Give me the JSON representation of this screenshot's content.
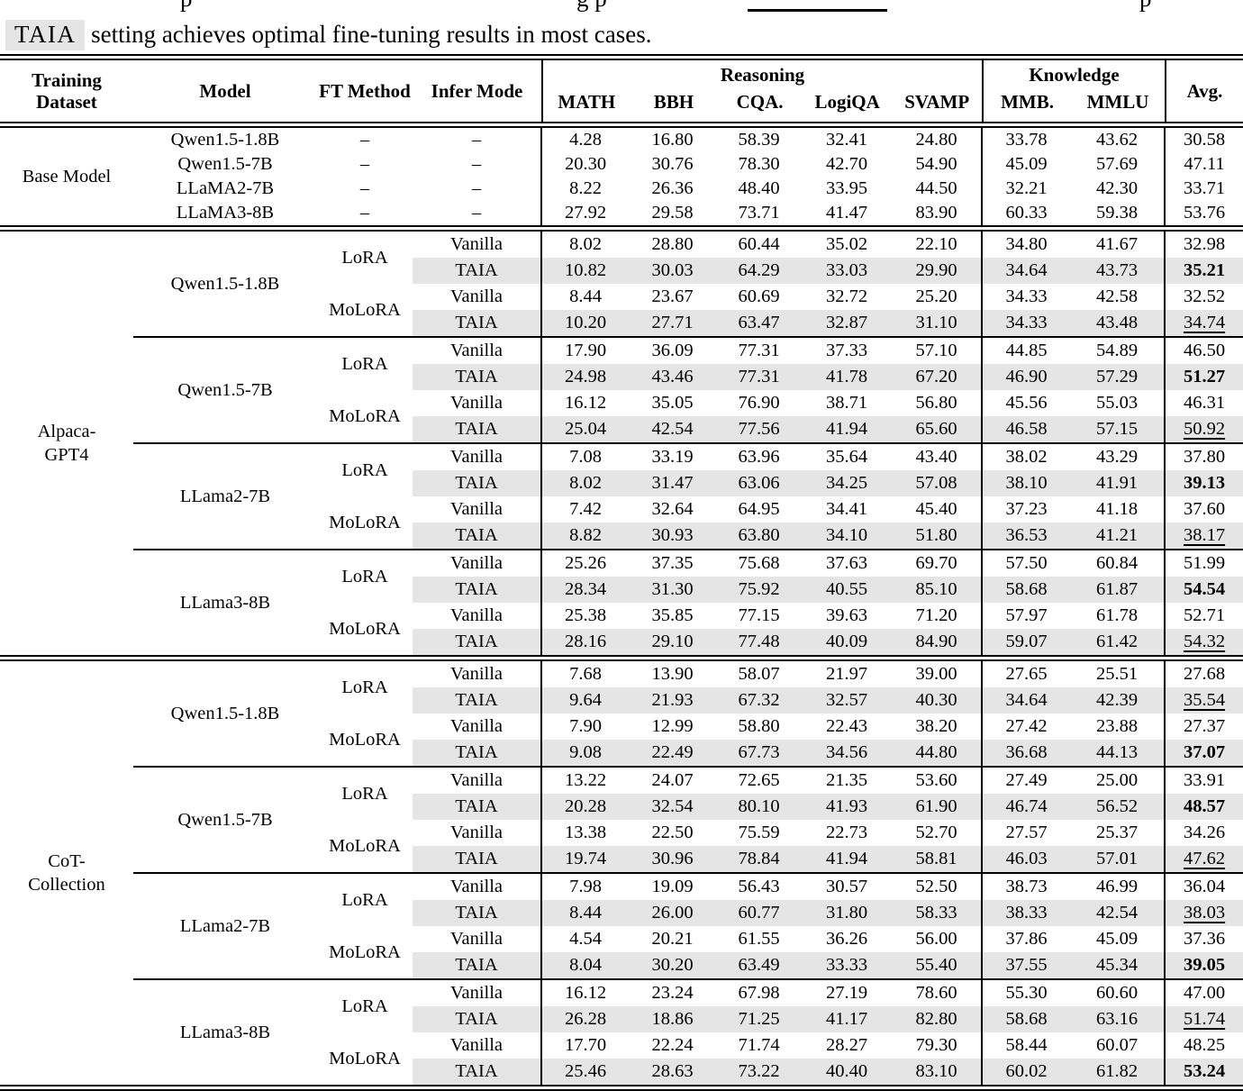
{
  "caption": {
    "fragment_1": "p",
    "fragment_2": "g p",
    "fragment_3": "p",
    "highlight": "TAIA",
    "text": "setting achieves optimal fine-tuning results in most cases."
  },
  "header": {
    "training_line1": "Training",
    "training_line2": "Dataset",
    "model": "Model",
    "ft_method": "FT Method",
    "infer_mode": "Infer Mode",
    "reasoning": "Reasoning",
    "knowledge": "Knowledge",
    "reasoning_cols": [
      "MATH",
      "BBH",
      "CQA.",
      "LogiQA",
      "SVAMP"
    ],
    "knowledge_cols": [
      "MMB.",
      "MMLU"
    ],
    "avg": "Avg."
  },
  "colors": {
    "row_shade": "#e5e5e5",
    "rule": "#000000",
    "caption_highlight_bg": "#e5e5e5"
  },
  "sections": [
    {
      "id": "base",
      "type": "flat",
      "dataset_lines": [
        "Base Model"
      ],
      "rows": [
        {
          "model": "Qwen1.5-1.8B",
          "ft": "–",
          "infer": "–",
          "shaded": false,
          "scores": [
            "4.28",
            "16.80",
            "58.39",
            "32.41",
            "24.80",
            "33.78",
            "43.62"
          ],
          "avg": "30.58",
          "avg_style": ""
        },
        {
          "model": "Qwen1.5-7B",
          "ft": "–",
          "infer": "–",
          "shaded": false,
          "scores": [
            "20.30",
            "30.76",
            "78.30",
            "42.70",
            "54.90",
            "45.09",
            "57.69"
          ],
          "avg": "47.11",
          "avg_style": ""
        },
        {
          "model": "LLaMA2-7B",
          "ft": "–",
          "infer": "–",
          "shaded": false,
          "scores": [
            "8.22",
            "26.36",
            "48.40",
            "33.95",
            "44.50",
            "32.21",
            "42.30"
          ],
          "avg": "33.71",
          "avg_style": ""
        },
        {
          "model": "LLaMA3-8B",
          "ft": "–",
          "infer": "–",
          "shaded": false,
          "scores": [
            "27.92",
            "29.58",
            "73.71",
            "41.47",
            "83.90",
            "60.33",
            "59.38"
          ],
          "avg": "53.76",
          "avg_style": ""
        }
      ]
    },
    {
      "id": "alpaca",
      "type": "blocks",
      "dataset_lines": [
        "Alpaca-",
        "GPT4"
      ],
      "blocks": [
        {
          "model": "Qwen1.5-1.8B",
          "groups": [
            {
              "ft": "LoRA",
              "rows": [
                {
                  "infer": "Vanilla",
                  "shaded": false,
                  "scores": [
                    "8.02",
                    "28.80",
                    "60.44",
                    "35.02",
                    "22.10",
                    "34.80",
                    "41.67"
                  ],
                  "avg": "32.98",
                  "avg_style": ""
                },
                {
                  "infer": "TAIA",
                  "shaded": true,
                  "scores": [
                    "10.82",
                    "30.03",
                    "64.29",
                    "33.03",
                    "29.90",
                    "34.64",
                    "43.73"
                  ],
                  "avg": "35.21",
                  "avg_style": "bold"
                }
              ]
            },
            {
              "ft": "MoLoRA",
              "rows": [
                {
                  "infer": "Vanilla",
                  "shaded": false,
                  "scores": [
                    "8.44",
                    "23.67",
                    "60.69",
                    "32.72",
                    "25.20",
                    "34.33",
                    "42.58"
                  ],
                  "avg": "32.52",
                  "avg_style": ""
                },
                {
                  "infer": "TAIA",
                  "shaded": true,
                  "scores": [
                    "10.20",
                    "27.71",
                    "63.47",
                    "32.87",
                    "31.10",
                    "34.33",
                    "43.48"
                  ],
                  "avg": "34.74",
                  "avg_style": "underline"
                }
              ]
            }
          ]
        },
        {
          "model": "Qwen1.5-7B",
          "groups": [
            {
              "ft": "LoRA",
              "rows": [
                {
                  "infer": "Vanilla",
                  "shaded": false,
                  "scores": [
                    "17.90",
                    "36.09",
                    "77.31",
                    "37.33",
                    "57.10",
                    "44.85",
                    "54.89"
                  ],
                  "avg": "46.50",
                  "avg_style": ""
                },
                {
                  "infer": "TAIA",
                  "shaded": true,
                  "scores": [
                    "24.98",
                    "43.46",
                    "77.31",
                    "41.78",
                    "67.20",
                    "46.90",
                    "57.29"
                  ],
                  "avg": "51.27",
                  "avg_style": "bold"
                }
              ]
            },
            {
              "ft": "MoLoRA",
              "rows": [
                {
                  "infer": "Vanilla",
                  "shaded": false,
                  "scores": [
                    "16.12",
                    "35.05",
                    "76.90",
                    "38.71",
                    "56.80",
                    "45.56",
                    "55.03"
                  ],
                  "avg": "46.31",
                  "avg_style": ""
                },
                {
                  "infer": "TAIA",
                  "shaded": true,
                  "scores": [
                    "25.04",
                    "42.54",
                    "77.56",
                    "41.94",
                    "65.60",
                    "46.58",
                    "57.15"
                  ],
                  "avg": "50.92",
                  "avg_style": "underline"
                }
              ]
            }
          ]
        },
        {
          "model": "LLama2-7B",
          "groups": [
            {
              "ft": "LoRA",
              "rows": [
                {
                  "infer": "Vanilla",
                  "shaded": false,
                  "scores": [
                    "7.08",
                    "33.19",
                    "63.96",
                    "35.64",
                    "43.40",
                    "38.02",
                    "43.29"
                  ],
                  "avg": "37.80",
                  "avg_style": ""
                },
                {
                  "infer": "TAIA",
                  "shaded": true,
                  "scores": [
                    "8.02",
                    "31.47",
                    "63.06",
                    "34.25",
                    "57.08",
                    "38.10",
                    "41.91"
                  ],
                  "avg": "39.13",
                  "avg_style": "bold"
                }
              ]
            },
            {
              "ft": "MoLoRA",
              "rows": [
                {
                  "infer": "Vanilla",
                  "shaded": false,
                  "scores": [
                    "7.42",
                    "32.64",
                    "64.95",
                    "34.41",
                    "45.40",
                    "37.23",
                    "41.18"
                  ],
                  "avg": "37.60",
                  "avg_style": ""
                },
                {
                  "infer": "TAIA",
                  "shaded": true,
                  "scores": [
                    "8.82",
                    "30.93",
                    "63.80",
                    "34.10",
                    "51.80",
                    "36.53",
                    "41.21"
                  ],
                  "avg": "38.17",
                  "avg_style": "underline"
                }
              ]
            }
          ]
        },
        {
          "model": "LLama3-8B",
          "groups": [
            {
              "ft": "LoRA",
              "rows": [
                {
                  "infer": "Vanilla",
                  "shaded": false,
                  "scores": [
                    "25.26",
                    "37.35",
                    "75.68",
                    "37.63",
                    "69.70",
                    "57.50",
                    "60.84"
                  ],
                  "avg": "51.99",
                  "avg_style": ""
                },
                {
                  "infer": "TAIA",
                  "shaded": true,
                  "scores": [
                    "28.34",
                    "31.30",
                    "75.92",
                    "40.55",
                    "85.10",
                    "58.68",
                    "61.87"
                  ],
                  "avg": "54.54",
                  "avg_style": "bold"
                }
              ]
            },
            {
              "ft": "MoLoRA",
              "rows": [
                {
                  "infer": "Vanilla",
                  "shaded": false,
                  "scores": [
                    "25.38",
                    "35.85",
                    "77.15",
                    "39.63",
                    "71.20",
                    "57.97",
                    "61.78"
                  ],
                  "avg": "52.71",
                  "avg_style": ""
                },
                {
                  "infer": "TAIA",
                  "shaded": true,
                  "scores": [
                    "28.16",
                    "29.10",
                    "77.48",
                    "40.09",
                    "84.90",
                    "59.07",
                    "61.42"
                  ],
                  "avg": "54.32",
                  "avg_style": "underline"
                }
              ]
            }
          ]
        }
      ]
    },
    {
      "id": "cot",
      "type": "blocks",
      "dataset_lines": [
        "CoT-",
        "Collection"
      ],
      "blocks": [
        {
          "model": "Qwen1.5-1.8B",
          "groups": [
            {
              "ft": "LoRA",
              "rows": [
                {
                  "infer": "Vanilla",
                  "shaded": false,
                  "scores": [
                    "7.68",
                    "13.90",
                    "58.07",
                    "21.97",
                    "39.00",
                    "27.65",
                    "25.51"
                  ],
                  "avg": "27.68",
                  "avg_style": ""
                },
                {
                  "infer": "TAIA",
                  "shaded": true,
                  "scores": [
                    "9.64",
                    "21.93",
                    "67.32",
                    "32.57",
                    "40.30",
                    "34.64",
                    "42.39"
                  ],
                  "avg": "35.54",
                  "avg_style": "underline"
                }
              ]
            },
            {
              "ft": "MoLoRA",
              "rows": [
                {
                  "infer": "Vanilla",
                  "shaded": false,
                  "scores": [
                    "7.90",
                    "12.99",
                    "58.80",
                    "22.43",
                    "38.20",
                    "27.42",
                    "23.88"
                  ],
                  "avg": "27.37",
                  "avg_style": ""
                },
                {
                  "infer": "TAIA",
                  "shaded": true,
                  "scores": [
                    "9.08",
                    "22.49",
                    "67.73",
                    "34.56",
                    "44.80",
                    "36.68",
                    "44.13"
                  ],
                  "avg": "37.07",
                  "avg_style": "bold"
                }
              ]
            }
          ]
        },
        {
          "model": "Qwen1.5-7B",
          "groups": [
            {
              "ft": "LoRA",
              "rows": [
                {
                  "infer": "Vanilla",
                  "shaded": false,
                  "scores": [
                    "13.22",
                    "24.07",
                    "72.65",
                    "21.35",
                    "53.60",
                    "27.49",
                    "25.00"
                  ],
                  "avg": "33.91",
                  "avg_style": ""
                },
                {
                  "infer": "TAIA",
                  "shaded": true,
                  "scores": [
                    "20.28",
                    "32.54",
                    "80.10",
                    "41.93",
                    "61.90",
                    "46.74",
                    "56.52"
                  ],
                  "avg": "48.57",
                  "avg_style": "bold"
                }
              ]
            },
            {
              "ft": "MoLoRA",
              "rows": [
                {
                  "infer": "Vanilla",
                  "shaded": false,
                  "scores": [
                    "13.38",
                    "22.50",
                    "75.59",
                    "22.73",
                    "52.70",
                    "27.57",
                    "25.37"
                  ],
                  "avg": "34.26",
                  "avg_style": ""
                },
                {
                  "infer": "TAIA",
                  "shaded": true,
                  "scores": [
                    "19.74",
                    "30.96",
                    "78.84",
                    "41.94",
                    "58.81",
                    "46.03",
                    "57.01"
                  ],
                  "avg": "47.62",
                  "avg_style": "underline"
                }
              ]
            }
          ]
        },
        {
          "model": "LLama2-7B",
          "groups": [
            {
              "ft": "LoRA",
              "rows": [
                {
                  "infer": "Vanilla",
                  "shaded": false,
                  "scores": [
                    "7.98",
                    "19.09",
                    "56.43",
                    "30.57",
                    "52.50",
                    "38.73",
                    "46.99"
                  ],
                  "avg": "36.04",
                  "avg_style": ""
                },
                {
                  "infer": "TAIA",
                  "shaded": true,
                  "scores": [
                    "8.44",
                    "26.00",
                    "60.77",
                    "31.80",
                    "58.33",
                    "38.33",
                    "42.54"
                  ],
                  "avg": "38.03",
                  "avg_style": "underline"
                }
              ]
            },
            {
              "ft": "MoLoRA",
              "rows": [
                {
                  "infer": "Vanilla",
                  "shaded": false,
                  "scores": [
                    "4.54",
                    "20.21",
                    "61.55",
                    "36.26",
                    "56.00",
                    "37.86",
                    "45.09"
                  ],
                  "avg": "37.36",
                  "avg_style": ""
                },
                {
                  "infer": "TAIA",
                  "shaded": true,
                  "scores": [
                    "8.04",
                    "30.20",
                    "63.49",
                    "33.33",
                    "55.40",
                    "37.55",
                    "45.34"
                  ],
                  "avg": "39.05",
                  "avg_style": "bold"
                }
              ]
            }
          ]
        },
        {
          "model": "LLama3-8B",
          "groups": [
            {
              "ft": "LoRA",
              "rows": [
                {
                  "infer": "Vanilla",
                  "shaded": false,
                  "scores": [
                    "16.12",
                    "23.24",
                    "67.98",
                    "27.19",
                    "78.60",
                    "55.30",
                    "60.60"
                  ],
                  "avg": "47.00",
                  "avg_style": ""
                },
                {
                  "infer": "TAIA",
                  "shaded": true,
                  "scores": [
                    "26.28",
                    "18.86",
                    "71.25",
                    "41.17",
                    "82.80",
                    "58.68",
                    "63.16"
                  ],
                  "avg": "51.74",
                  "avg_style": "underline"
                }
              ]
            },
            {
              "ft": "MoLoRA",
              "rows": [
                {
                  "infer": "Vanilla",
                  "shaded": false,
                  "scores": [
                    "17.70",
                    "22.24",
                    "71.74",
                    "28.27",
                    "79.30",
                    "58.44",
                    "60.07"
                  ],
                  "avg": "48.25",
                  "avg_style": ""
                },
                {
                  "infer": "TAIA",
                  "shaded": true,
                  "scores": [
                    "25.46",
                    "28.63",
                    "73.22",
                    "40.40",
                    "83.10",
                    "60.02",
                    "61.82"
                  ],
                  "avg": "53.24",
                  "avg_style": "bold"
                }
              ]
            }
          ]
        }
      ]
    }
  ]
}
